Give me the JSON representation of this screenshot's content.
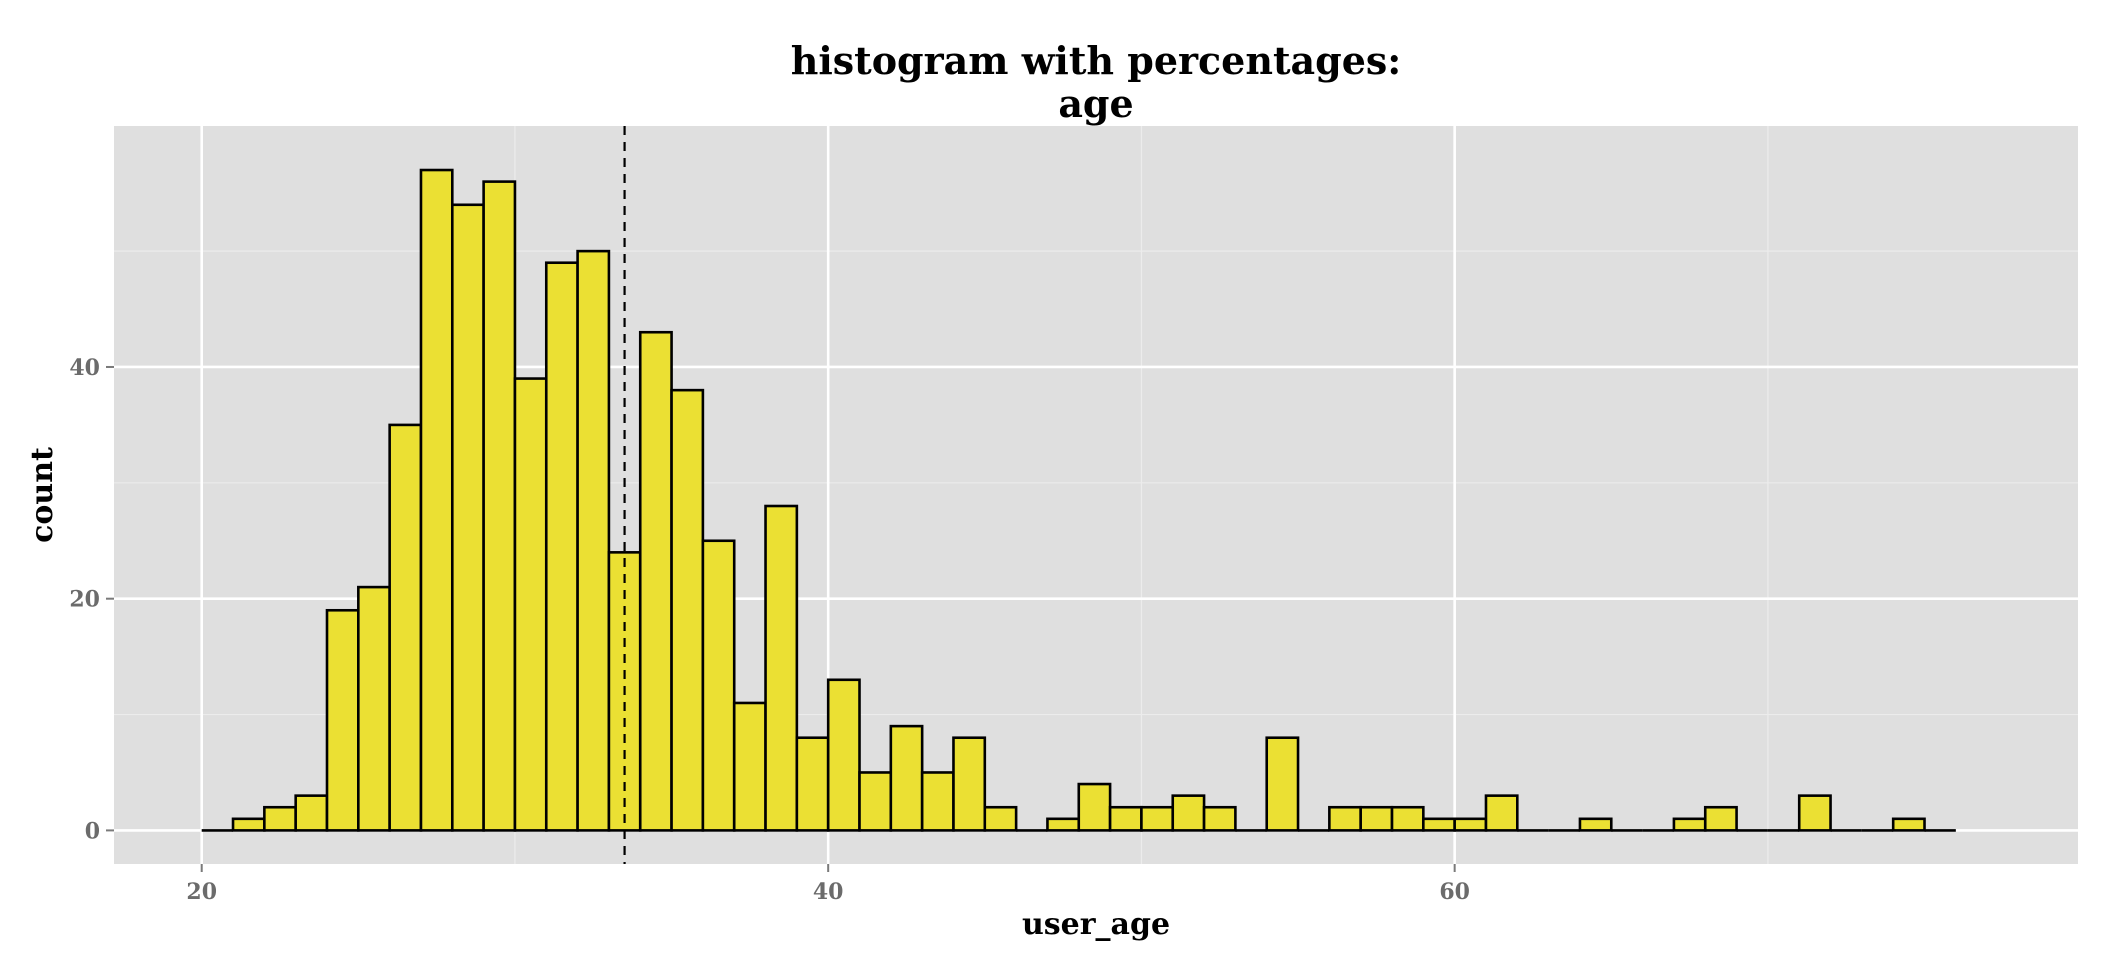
{
  "chart_data": {
    "type": "bar",
    "title_line1": "histogram with percentages:",
    "title_line2": "age",
    "xlabel": "user_age",
    "ylabel": "count",
    "xlim": [
      17.2,
      79.9
    ],
    "ylim": [
      -2.9,
      60.8
    ],
    "x_ticks": [
      20,
      40,
      60
    ],
    "y_ticks": [
      0,
      20,
      40
    ],
    "binwidth": 1,
    "bin_starts": [
      20,
      21,
      22,
      23,
      24,
      25,
      26,
      27,
      28,
      29,
      30,
      31,
      32,
      33,
      34,
      35,
      36,
      37,
      38,
      39,
      40,
      41,
      42,
      43,
      44,
      45,
      46,
      47,
      48,
      49,
      50,
      51,
      52,
      53,
      54,
      55,
      56,
      57,
      58,
      59,
      60,
      61,
      62,
      63,
      64,
      65,
      66,
      67,
      68,
      69,
      70,
      71,
      72,
      73,
      74,
      75
    ],
    "values": [
      0,
      1,
      2,
      3,
      19,
      21,
      35,
      57,
      54,
      56,
      39,
      49,
      50,
      24,
      43,
      38,
      25,
      11,
      28,
      8,
      13,
      5,
      9,
      5,
      8,
      2,
      0,
      1,
      4,
      2,
      2,
      3,
      2,
      0,
      8,
      0,
      2,
      2,
      2,
      1,
      1,
      3,
      0,
      0,
      1,
      0,
      0,
      1,
      2,
      0,
      0,
      3,
      0,
      0,
      1,
      0
    ],
    "mean_line": 33.5,
    "bar_fill": "#ebe033",
    "bar_stroke": "#000000",
    "panel_background": "#dfdfdf",
    "grid": true
  }
}
